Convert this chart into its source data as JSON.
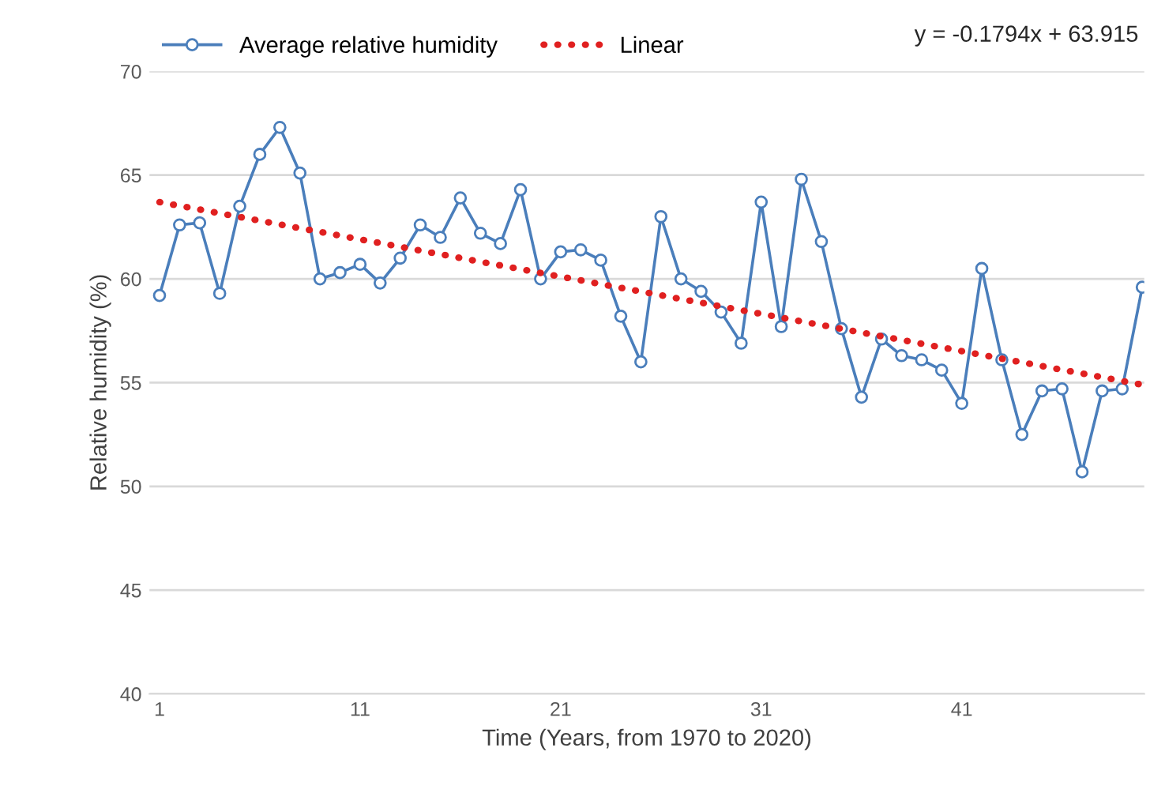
{
  "chart_data": {
    "type": "line",
    "xlabel": "Time (Years, from 1970 to 2020)",
    "ylabel": "Relative humidity (%)",
    "x": [
      1,
      2,
      3,
      4,
      5,
      6,
      7,
      8,
      9,
      10,
      11,
      12,
      13,
      14,
      15,
      16,
      17,
      18,
      19,
      20,
      21,
      22,
      23,
      24,
      25,
      26,
      27,
      28,
      29,
      30,
      31,
      32,
      33,
      34,
      35,
      36,
      37,
      38,
      39,
      40,
      41,
      42,
      43,
      44,
      45,
      46,
      47,
      48,
      49,
      50
    ],
    "series": [
      {
        "name": "Average relative humidity",
        "color": "#4a7ebb",
        "marker": "circle",
        "line_style": "solid",
        "values": [
          59.2,
          62.6,
          62.7,
          59.3,
          63.5,
          66.0,
          67.3,
          65.1,
          60.0,
          60.3,
          60.7,
          59.8,
          61.0,
          62.6,
          62.0,
          63.9,
          62.2,
          61.7,
          64.3,
          60.0,
          61.3,
          61.4,
          60.9,
          58.2,
          56.0,
          63.0,
          60.0,
          59.4,
          58.4,
          56.9,
          63.7,
          57.7,
          64.8,
          61.8,
          57.6,
          54.3,
          57.1,
          56.3,
          56.1,
          55.6,
          54.0,
          60.5,
          56.1,
          52.5,
          54.6,
          54.7,
          50.7,
          54.6,
          54.7,
          59.6
        ]
      },
      {
        "name": "Linear",
        "color": "#e02020",
        "type": "line",
        "marker": "none",
        "line_style": "dotted",
        "x": [
          1,
          50
        ],
        "values": [
          63.7,
          54.9
        ]
      }
    ],
    "annotations": [
      "y = -0.1794x + 63.915"
    ],
    "xlim": [
      0.5,
      50.1
    ],
    "xticks": [
      1,
      11,
      21,
      31,
      41
    ],
    "ylim": [
      40,
      70
    ],
    "yticks": [
      40,
      45,
      50,
      55,
      60,
      65,
      70
    ],
    "grid": "y",
    "legend": "top"
  }
}
